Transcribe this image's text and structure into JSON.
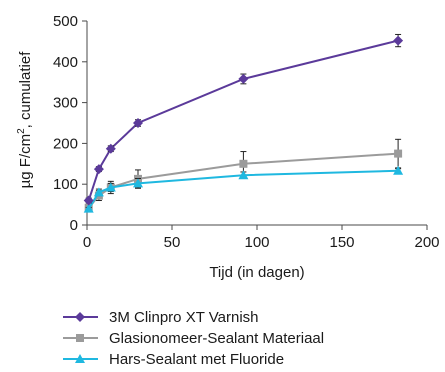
{
  "chart_data": {
    "type": "line",
    "xlabel": "Tijd (in dagen)",
    "ylabel_parts": [
      "µg F/cm",
      "2",
      ", cumulatief"
    ],
    "xlim": [
      0,
      200
    ],
    "ylim": [
      0,
      500
    ],
    "xticks": [
      0,
      50,
      100,
      150,
      200
    ],
    "yticks": [
      0,
      100,
      200,
      300,
      400,
      500
    ],
    "grid": false,
    "legend_position": "bottom",
    "series": [
      {
        "name": "3M Clinpro XT Varnish",
        "color": "#5b3a9a",
        "marker": "diamond",
        "x": [
          1,
          7,
          14,
          30,
          92,
          183
        ],
        "y": [
          60,
          137,
          187,
          250,
          358,
          452
        ],
        "err": [
          6,
          6,
          7,
          8,
          12,
          15
        ]
      },
      {
        "name": "Glasionomeer-Sealant Materiaal",
        "color": "#9b9b9b",
        "marker": "square",
        "x": [
          1,
          7,
          14,
          30,
          92,
          183
        ],
        "y": [
          42,
          72,
          92,
          113,
          150,
          175
        ],
        "err": [
          5,
          12,
          15,
          22,
          30,
          35
        ]
      },
      {
        "name": "Hars-Sealant met Fluoride",
        "color": "#1fb8e0",
        "marker": "triangle",
        "x": [
          1,
          7,
          14,
          30,
          92,
          183
        ],
        "y": [
          40,
          80,
          92,
          102,
          122,
          133
        ],
        "err": [
          3,
          8,
          10,
          12,
          8,
          5
        ]
      }
    ]
  }
}
